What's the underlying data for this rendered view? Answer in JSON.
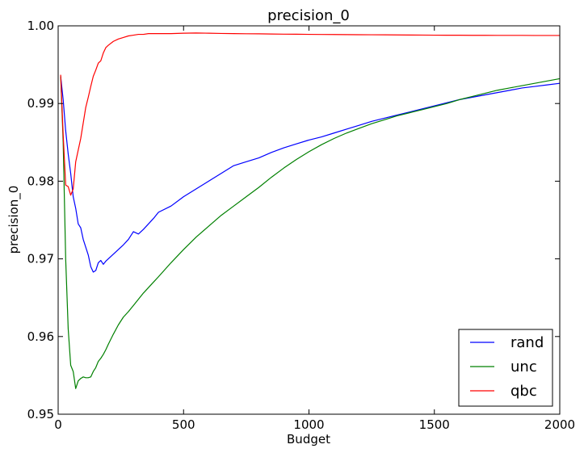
{
  "chart_data": {
    "type": "line",
    "title": "precision_0",
    "xlabel": "Budget",
    "ylabel": "precision_0",
    "xlim": [
      0,
      2000
    ],
    "ylim": [
      0.95,
      1.0
    ],
    "xticks": [
      0,
      500,
      1000,
      1500,
      2000
    ],
    "xtick_labels": [
      "0",
      "500",
      "1000",
      "1500",
      "2000"
    ],
    "yticks": [
      0.95,
      0.96,
      0.97,
      0.98,
      0.99,
      1.0
    ],
    "ytick_labels": [
      "0.95",
      "0.96",
      "0.97",
      "0.98",
      "0.99",
      "1.00"
    ],
    "grid": false,
    "legend_position": "bottom-right",
    "series": [
      {
        "name": "rand",
        "color": "#0000ff",
        "x": [
          10,
          20,
          30,
          40,
          50,
          60,
          70,
          80,
          90,
          100,
          110,
          120,
          130,
          140,
          150,
          160,
          170,
          180,
          190,
          200,
          220,
          240,
          260,
          280,
          300,
          320,
          340,
          360,
          380,
          400,
          450,
          500,
          550,
          600,
          650,
          700,
          750,
          800,
          850,
          900,
          950,
          1000,
          1050,
          1100,
          1150,
          1200,
          1250,
          1300,
          1350,
          1400,
          1450,
          1500,
          1550,
          1600,
          1650,
          1700,
          1750,
          1800,
          1850,
          1900,
          1950,
          2000
        ],
        "y": [
          0.9935,
          0.9905,
          0.9865,
          0.9835,
          0.981,
          0.978,
          0.9765,
          0.9745,
          0.974,
          0.9725,
          0.9715,
          0.9705,
          0.969,
          0.9683,
          0.9685,
          0.9695,
          0.9698,
          0.9693,
          0.9697,
          0.97,
          0.9706,
          0.9712,
          0.9718,
          0.9725,
          0.9735,
          0.9732,
          0.9738,
          0.9745,
          0.9752,
          0.976,
          0.9768,
          0.978,
          0.979,
          0.98,
          0.981,
          0.982,
          0.9825,
          0.983,
          0.9837,
          0.9843,
          0.9848,
          0.9853,
          0.9857,
          0.9862,
          0.9867,
          0.9872,
          0.9877,
          0.9881,
          0.9885,
          0.9889,
          0.9893,
          0.9897,
          0.9901,
          0.9905,
          0.9908,
          0.9911,
          0.9914,
          0.9917,
          0.992,
          0.9922,
          0.9924,
          0.9926
        ]
      },
      {
        "name": "unc",
        "color": "#008000",
        "x": [
          10,
          20,
          30,
          40,
          50,
          60,
          70,
          80,
          90,
          100,
          110,
          120,
          130,
          140,
          150,
          160,
          170,
          180,
          190,
          200,
          220,
          240,
          260,
          280,
          300,
          320,
          340,
          360,
          380,
          400,
          450,
          500,
          550,
          600,
          650,
          700,
          750,
          800,
          850,
          900,
          950,
          1000,
          1050,
          1100,
          1150,
          1200,
          1250,
          1300,
          1350,
          1400,
          1450,
          1500,
          1550,
          1600,
          1650,
          1700,
          1750,
          1800,
          1850,
          1900,
          1950,
          2000
        ],
        "y": [
          0.9935,
          0.985,
          0.97,
          0.961,
          0.9563,
          0.9555,
          0.9533,
          0.9543,
          0.9546,
          0.9548,
          0.9547,
          0.9547,
          0.9548,
          0.9555,
          0.956,
          0.9568,
          0.9572,
          0.9577,
          0.9583,
          0.959,
          0.9603,
          0.9615,
          0.9625,
          0.9632,
          0.964,
          0.9648,
          0.9656,
          0.9663,
          0.967,
          0.9677,
          0.9695,
          0.9712,
          0.9728,
          0.9742,
          0.9756,
          0.9768,
          0.978,
          0.9792,
          0.9805,
          0.9817,
          0.9828,
          0.9838,
          0.9847,
          0.9855,
          0.9862,
          0.9868,
          0.9874,
          0.9879,
          0.9884,
          0.9888,
          0.9892,
          0.9896,
          0.99,
          0.9905,
          0.9909,
          0.9913,
          0.9917,
          0.992,
          0.9923,
          0.9926,
          0.9929,
          0.9932
        ]
      },
      {
        "name": "qbc",
        "color": "#ff0000",
        "x": [
          10,
          20,
          30,
          40,
          50,
          60,
          70,
          80,
          90,
          100,
          110,
          120,
          130,
          140,
          150,
          160,
          170,
          180,
          190,
          200,
          220,
          240,
          260,
          280,
          300,
          320,
          340,
          360,
          380,
          400,
          450,
          500,
          550,
          600,
          650,
          700,
          750,
          800,
          850,
          900,
          950,
          1000,
          1050,
          1100,
          1150,
          1200,
          1250,
          1300,
          1350,
          1400,
          1450,
          1500,
          1550,
          1600,
          1650,
          1700,
          1750,
          1800,
          1850,
          1900,
          1950,
          2000
        ],
        "y": [
          0.9937,
          0.986,
          0.9795,
          0.9793,
          0.9782,
          0.979,
          0.9825,
          0.984,
          0.9855,
          0.9875,
          0.9895,
          0.9908,
          0.9922,
          0.9935,
          0.9943,
          0.9952,
          0.9955,
          0.9965,
          0.9972,
          0.9975,
          0.998,
          0.9983,
          0.9985,
          0.9987,
          0.9988,
          0.9989,
          0.9989,
          0.999,
          0.999,
          0.999,
          0.999,
          0.99905,
          0.99908,
          0.99905,
          0.99902,
          0.999,
          0.99898,
          0.99897,
          0.99895,
          0.99893,
          0.99892,
          0.9989,
          0.99889,
          0.99888,
          0.99887,
          0.99886,
          0.99885,
          0.99884,
          0.99883,
          0.99882,
          0.99881,
          0.9988,
          0.99879,
          0.99879,
          0.99878,
          0.99878,
          0.99877,
          0.99877,
          0.99877,
          0.99876,
          0.99876,
          0.99876
        ]
      }
    ]
  }
}
